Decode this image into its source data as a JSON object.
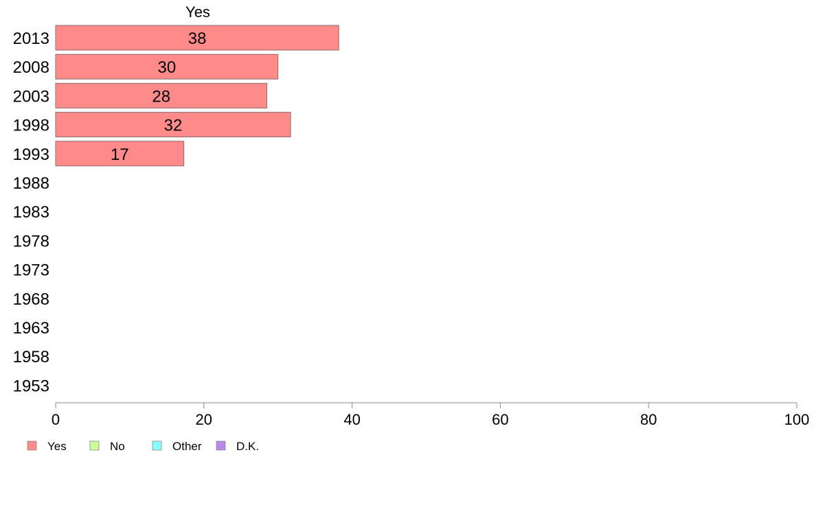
{
  "chart_data": {
    "type": "bar",
    "orientation": "horizontal",
    "stacked": true,
    "categories": [
      "2013",
      "2008",
      "2003",
      "1998",
      "1993",
      "1988",
      "1983",
      "1978",
      "1973",
      "1968",
      "1963",
      "1958",
      "1953"
    ],
    "series": [
      {
        "name": "Yes",
        "color": "#ff8a8a",
        "values": [
          38,
          30,
          28,
          32,
          17,
          null,
          null,
          null,
          null,
          null,
          null,
          null,
          null
        ]
      },
      {
        "name": "No",
        "color": "#ccff99",
        "values": [
          null,
          null,
          null,
          null,
          null,
          null,
          null,
          null,
          null,
          null,
          null,
          null,
          null
        ]
      },
      {
        "name": "Other",
        "color": "#88ffff",
        "values": [
          null,
          null,
          null,
          null,
          null,
          null,
          null,
          null,
          null,
          null,
          null,
          null,
          null
        ]
      },
      {
        "name": "D.K.",
        "color": "#bb88ee",
        "values": [
          null,
          null,
          null,
          null,
          null,
          null,
          null,
          null,
          null,
          null,
          null,
          null,
          null
        ]
      }
    ],
    "precise_values": [
      38.2,
      30.0,
      28.5,
      31.7,
      17.3
    ],
    "header_label": "Yes",
    "xlim": [
      0,
      100
    ],
    "xticks": [
      "0",
      "20",
      "40",
      "60",
      "80",
      "100"
    ],
    "legend_position": "bottom-left",
    "grid": false
  }
}
